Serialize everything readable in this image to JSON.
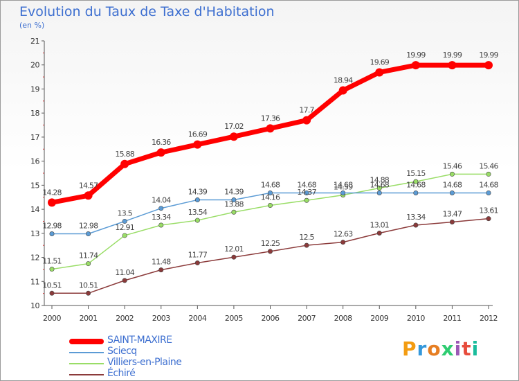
{
  "title": "Evolution du Taux de Taxe d'Habitation",
  "unit": "(en %)",
  "logo_text": "Proxiti",
  "logo_colors": [
    "#f39c12",
    "#3498db",
    "#e67e22",
    "#2ecc71",
    "#9b59b6",
    "#e74c3c",
    "#1abc9c"
  ],
  "chart_data": {
    "type": "line",
    "x": [
      "2000",
      "2001",
      "2002",
      "2003",
      "2004",
      "2005",
      "2006",
      "2007",
      "2008",
      "2009",
      "2010",
      "2011",
      "2012"
    ],
    "y_ticks": [
      "10",
      "11",
      "12",
      "13",
      "14",
      "15",
      "16",
      "17",
      "18",
      "19",
      "20",
      "21"
    ],
    "ylim": [
      10,
      21
    ],
    "grid": false,
    "legend_position": "bottom-left",
    "series": [
      {
        "name": "SAINT-MAXIRE",
        "color": "#ff0000",
        "values": [
          14.28,
          14.57,
          15.88,
          16.36,
          16.69,
          17.02,
          17.36,
          17.7,
          18.94,
          19.69,
          19.99,
          19.99,
          19.99
        ],
        "labels": [
          "14.28",
          "14.57",
          "15.88",
          "16.36",
          "16.69",
          "17.02",
          "17.36",
          "17.7",
          "18.94",
          "19.69",
          "19.99",
          "19.99",
          "19.99"
        ]
      },
      {
        "name": "Sciecq",
        "color": "#5b9bd5",
        "values": [
          12.98,
          12.98,
          13.5,
          14.04,
          14.39,
          14.39,
          14.68,
          14.68,
          14.68,
          14.68,
          14.68,
          14.68,
          14.68
        ],
        "labels": [
          "12.98",
          "12.98",
          "13.5",
          "14.04",
          "14.39",
          "14.39",
          "14.68",
          "14.68",
          "14.68",
          "14.68",
          "14.68",
          "14.68",
          "14.68"
        ]
      },
      {
        "name": "Villiers-en-Plaine",
        "color": "#99dd66",
        "values": [
          11.51,
          11.74,
          12.91,
          13.34,
          13.54,
          13.88,
          14.16,
          14.37,
          14.59,
          14.88,
          15.15,
          15.46,
          15.46
        ],
        "labels": [
          "11.51",
          "11.74",
          "12.91",
          "13.34",
          "13.54",
          "13.88",
          "14.16",
          "14.37",
          "14.59",
          "14.88",
          "15.15",
          "15.46",
          "15.46"
        ]
      },
      {
        "name": "Échiré",
        "color": "#8b3a3a",
        "values": [
          10.51,
          10.51,
          11.04,
          11.48,
          11.77,
          12.01,
          12.25,
          12.5,
          12.63,
          13.01,
          13.34,
          13.47,
          13.61
        ],
        "labels": [
          "10.51",
          "10.51",
          "11.04",
          "11.48",
          "11.77",
          "12.01",
          "12.25",
          "12.5",
          "12.63",
          "13.01",
          "13.34",
          "13.47",
          "13.61"
        ]
      }
    ]
  }
}
